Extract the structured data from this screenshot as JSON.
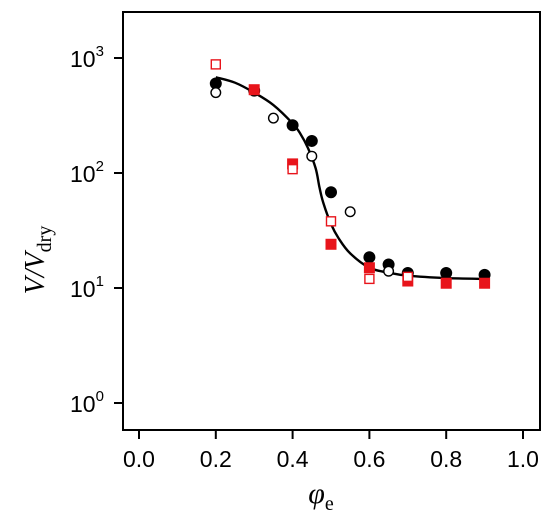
{
  "chart_data": {
    "type": "scatter",
    "title": "",
    "xlabel": {
      "main": "φ",
      "sub": "e"
    },
    "ylabel": {
      "main": "V/V",
      "sub": "dry"
    },
    "xlim": [
      0.0,
      1.0
    ],
    "ylim": [
      1,
      1000
    ],
    "yscale": "log",
    "grid": false,
    "x_ticks": [
      "0.0",
      "0.2",
      "0.4",
      "0.6",
      "0.8",
      "1.0"
    ],
    "y_ticks": [
      {
        "base": "10",
        "exp": "0",
        "value": 1
      },
      {
        "base": "10",
        "exp": "1",
        "value": 10
      },
      {
        "base": "10",
        "exp": "2",
        "value": 100
      },
      {
        "base": "10",
        "exp": "3",
        "value": 1000
      }
    ],
    "series": [
      {
        "marker": "circle-filled",
        "color": "#000000",
        "x": [
          0.2,
          0.3,
          0.4,
          0.45,
          0.5,
          0.6,
          0.65,
          0.7,
          0.8,
          0.9
        ],
        "y": [
          600,
          520,
          260,
          190,
          68,
          18.5,
          16,
          13.5,
          13.5,
          13
        ]
      },
      {
        "marker": "circle-open",
        "color": "#000000",
        "x": [
          0.2,
          0.35,
          0.45,
          0.55,
          0.65
        ],
        "y": [
          500,
          300,
          140,
          46,
          14
        ]
      },
      {
        "marker": "square-filled",
        "color": "#e8141b",
        "x": [
          0.3,
          0.4,
          0.5,
          0.6,
          0.7,
          0.8,
          0.9
        ],
        "y": [
          530,
          120,
          24,
          15,
          11.5,
          11,
          11
        ]
      },
      {
        "marker": "square-open",
        "color": "#e8141b",
        "x": [
          0.2,
          0.4,
          0.5,
          0.6,
          0.7
        ],
        "y": [
          880,
          108,
          38,
          12,
          12.5
        ]
      }
    ],
    "fit_curve": {
      "color": "#000000",
      "x": [
        0.2,
        0.25,
        0.3,
        0.35,
        0.4,
        0.42,
        0.44,
        0.46,
        0.47,
        0.48,
        0.5,
        0.52,
        0.55,
        0.6,
        0.65,
        0.7,
        0.8,
        0.9
      ],
      "y": [
        680,
        610,
        500,
        390,
        270,
        220,
        165,
        110,
        75,
        55,
        36,
        27,
        20,
        15,
        13.6,
        12.8,
        12.2,
        12
      ]
    }
  }
}
